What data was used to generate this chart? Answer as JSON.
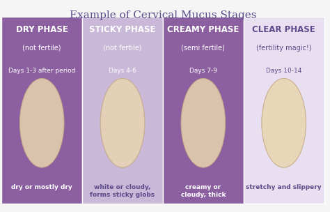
{
  "title": "Example of Cervical Mucus Stages",
  "title_color": "#5b4b8a",
  "title_fontsize": 11,
  "bg_color": "#f5f5f5",
  "panels": [
    {
      "phase": "DRY PHASE",
      "subtitle": "(not fertile)",
      "days": "Days 1-3 after period",
      "description": "dry or mostly dry",
      "bg_color": "#8b5fa0",
      "text_color": "#ffffff",
      "desc_color": "#ffffff"
    },
    {
      "phase": "STICKY PHASE",
      "subtitle": "(not fertile)",
      "days": "Days 4-6",
      "description": "white or cloudy,\nforms sticky globs",
      "bg_color": "#c9b8d8",
      "text_color": "#ffffff",
      "desc_color": "#5b4b8a"
    },
    {
      "phase": "CREAMY PHASE",
      "subtitle": "(semi fertile)",
      "days": "Days 7-9",
      "description": "creamy or\ncloudy, thick",
      "bg_color": "#8b5fa0",
      "text_color": "#ffffff",
      "desc_color": "#ffffff"
    },
    {
      "phase": "CLEAR PHASE",
      "subtitle": "(fertility magic!)",
      "days": "Days 10-14",
      "description": "stretchy and slippery",
      "bg_color": "#e8e0f0",
      "text_color": "#5b4b8a",
      "desc_color": "#5b4b8a"
    }
  ]
}
